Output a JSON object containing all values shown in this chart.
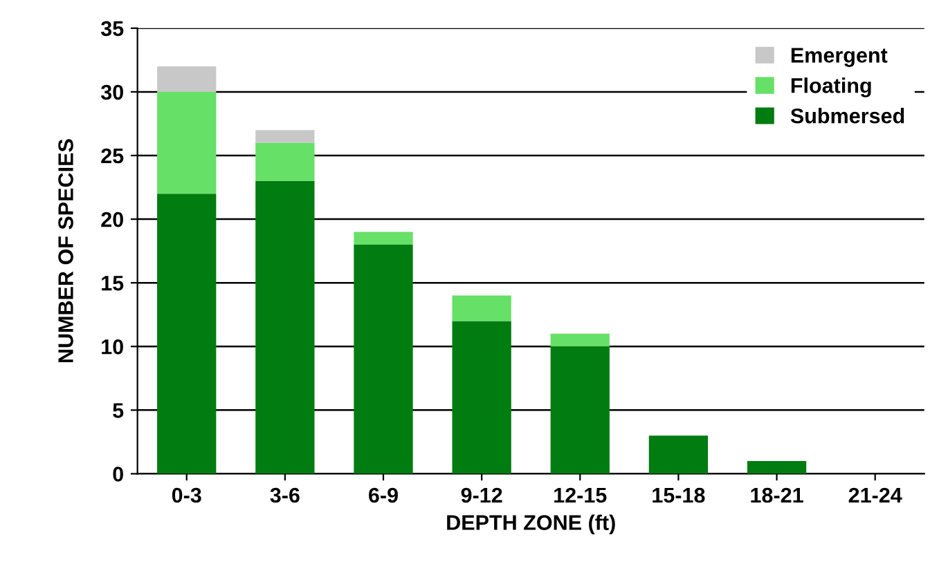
{
  "chart_data": {
    "type": "bar",
    "stacked": true,
    "xlabel": "DEPTH ZONE (ft)",
    "ylabel": "NUMBER OF SPECIES",
    "categories": [
      "0-3",
      "3-6",
      "6-9",
      "9-12",
      "12-15",
      "15-18",
      "18-21",
      "21-24"
    ],
    "series": [
      {
        "name": "Submersed",
        "color": "#007c10",
        "values": [
          22,
          23,
          18,
          12,
          10,
          3,
          1,
          0
        ]
      },
      {
        "name": "Floating",
        "color": "#66e066",
        "values": [
          8,
          3,
          1,
          2,
          1,
          0,
          0,
          0
        ]
      },
      {
        "name": "Emergent",
        "color": "#c8c8c8",
        "values": [
          2,
          1,
          0,
          0,
          0,
          0,
          0,
          0
        ]
      }
    ],
    "ylim": [
      0,
      35
    ],
    "yticks": [
      0,
      5,
      10,
      15,
      20,
      25,
      30,
      35
    ],
    "grid": "y",
    "legend": "top right"
  }
}
